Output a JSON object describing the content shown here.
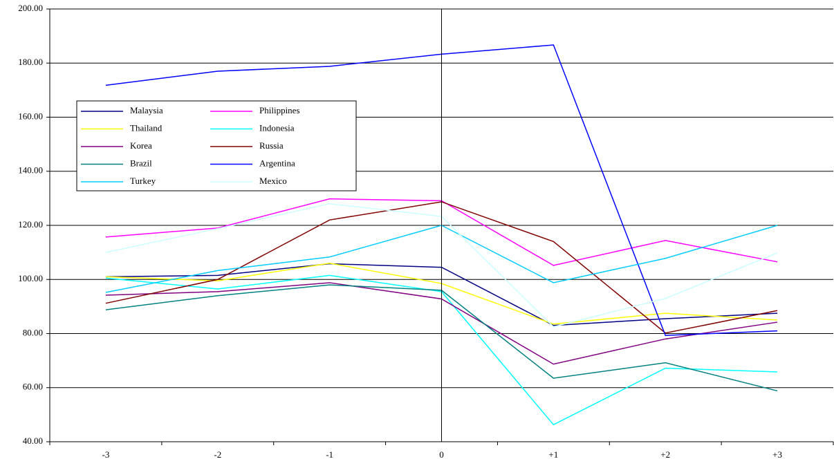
{
  "chart_data": {
    "type": "line",
    "categories": [
      "-3",
      "-2",
      "-1",
      "0",
      "+1",
      "+2",
      "+3"
    ],
    "ylim": [
      40,
      200
    ],
    "yticks": [
      {
        "value": 40,
        "label": "40.00"
      },
      {
        "value": 60,
        "label": "60.00"
      },
      {
        "value": 80,
        "label": "80.00"
      },
      {
        "value": 100,
        "label": "100.00"
      },
      {
        "value": 120,
        "label": "120.00"
      },
      {
        "value": 140,
        "label": "140.00"
      },
      {
        "value": 160,
        "label": "160.00"
      },
      {
        "value": 180,
        "label": "180.00"
      },
      {
        "value": 200,
        "label": "200.00"
      }
    ],
    "grid": true,
    "series": [
      {
        "name": "Malaysia",
        "color": "#000080",
        "values": [
          101,
          101.5,
          105.8,
          104.5,
          83,
          85.5,
          87.5
        ]
      },
      {
        "name": "Philippines",
        "color": "#ff00ff",
        "values": [
          115.7,
          119,
          129.8,
          129.1,
          105.2,
          114.4,
          106.5
        ]
      },
      {
        "name": "Thailand",
        "color": "#ffff00",
        "values": [
          101,
          99.5,
          106,
          98.5,
          83.5,
          87.5,
          85
        ]
      },
      {
        "name": "Indonesia",
        "color": "#00ffff",
        "values": [
          100.5,
          96.5,
          101.5,
          95.5,
          46.3,
          67.2,
          65.8
        ]
      },
      {
        "name": "Korea",
        "color": "#800080",
        "values": [
          94.2,
          95.5,
          98.8,
          92.8,
          68.7,
          78,
          84.2
        ]
      },
      {
        "name": "Russia",
        "color": "#800000",
        "values": [
          91.2,
          100,
          122,
          128.7,
          114,
          80.2,
          88.5
        ]
      },
      {
        "name": "Brazil",
        "color": "#008080",
        "values": [
          88.8,
          94,
          98,
          96,
          63.5,
          69.2,
          58.8
        ]
      },
      {
        "name": "Argentina",
        "color": "#0000ff",
        "values": [
          171.8,
          177,
          178.8,
          183.3,
          186.7,
          79.3,
          81
        ]
      },
      {
        "name": "Turkey",
        "color": "#00ccff",
        "values": [
          95.2,
          103.3,
          108.3,
          120,
          98.8,
          107.8,
          120
        ]
      },
      {
        "name": "Mexico",
        "color": "#ccffff",
        "values": [
          110,
          118.8,
          128,
          123.3,
          82.5,
          93,
          109.8
        ]
      }
    ]
  }
}
